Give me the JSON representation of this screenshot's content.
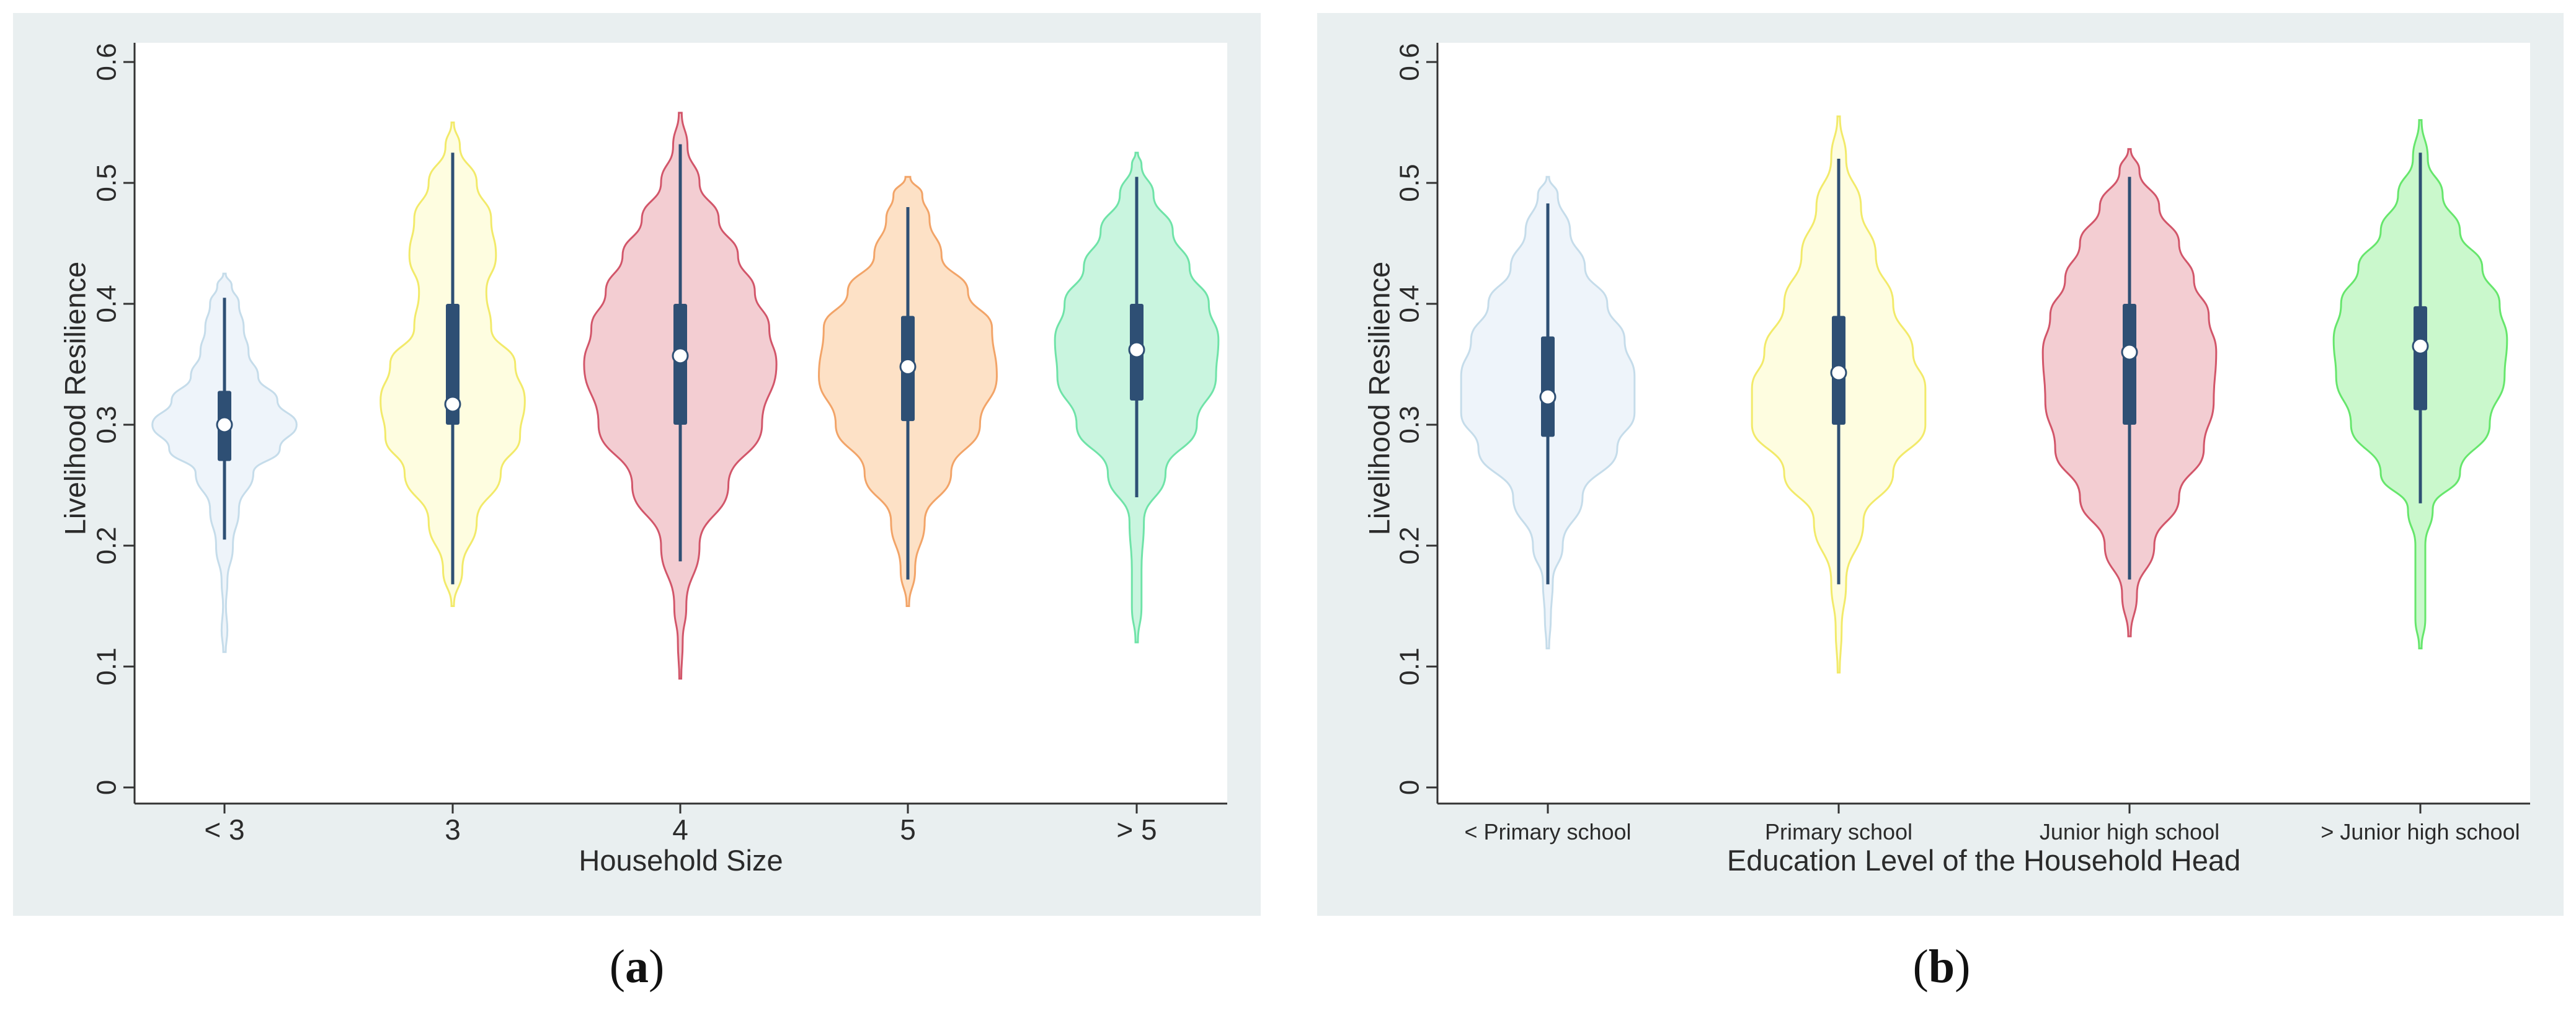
{
  "colors": {
    "panel_background": "#e9eff0",
    "plot_background": "#ffffff",
    "box": "#2e4f74",
    "median_marker": "#ffffff"
  },
  "captions": {
    "a": "a",
    "b": "b"
  },
  "chart_data": [
    {
      "id": "a",
      "type": "violin",
      "xlabel": "Household Size",
      "ylabel": "Livelihood Resilience",
      "ylim": [
        0,
        0.62
      ],
      "yticks": [
        "0",
        "0.1",
        "0.2",
        "0.3",
        "0.4",
        "0.5",
        "0.6"
      ],
      "categories": [
        "< 3",
        "3",
        "4",
        "5",
        "> 5"
      ],
      "series": [
        {
          "name": "< 3",
          "fill": "#eef4fa",
          "stroke": "#c5dcea",
          "whisker_low": 0.205,
          "q1": 0.27,
          "median": 0.3,
          "q3": 0.328,
          "whisker_high": 0.405,
          "density": [
            [
              0.112,
              0.005
            ],
            [
              0.13,
              0.012
            ],
            [
              0.15,
              0.006
            ],
            [
              0.17,
              0.012
            ],
            [
              0.2,
              0.035
            ],
            [
              0.23,
              0.06
            ],
            [
              0.26,
              0.12
            ],
            [
              0.28,
              0.23
            ],
            [
              0.3,
              0.3
            ],
            [
              0.32,
              0.22
            ],
            [
              0.34,
              0.14
            ],
            [
              0.36,
              0.1
            ],
            [
              0.38,
              0.08
            ],
            [
              0.4,
              0.06
            ],
            [
              0.415,
              0.03
            ],
            [
              0.425,
              0.005
            ]
          ]
        },
        {
          "name": "3",
          "fill": "#fefde0",
          "stroke": "#f2ea6a",
          "whisker_low": 0.168,
          "q1": 0.3,
          "median": 0.317,
          "q3": 0.4,
          "whisker_high": 0.525,
          "density": [
            [
              0.15,
              0.005
            ],
            [
              0.18,
              0.04
            ],
            [
              0.22,
              0.1
            ],
            [
              0.26,
              0.2
            ],
            [
              0.29,
              0.28
            ],
            [
              0.32,
              0.3
            ],
            [
              0.35,
              0.26
            ],
            [
              0.38,
              0.16
            ],
            [
              0.41,
              0.14
            ],
            [
              0.44,
              0.18
            ],
            [
              0.47,
              0.16
            ],
            [
              0.5,
              0.1
            ],
            [
              0.53,
              0.03
            ],
            [
              0.55,
              0.005
            ]
          ]
        },
        {
          "name": "4",
          "fill": "#f3cdd2",
          "stroke": "#d2566a",
          "whisker_low": 0.187,
          "q1": 0.3,
          "median": 0.357,
          "q3": 0.4,
          "whisker_high": 0.532,
          "density": [
            [
              0.09,
              0.004
            ],
            [
              0.12,
              0.01
            ],
            [
              0.15,
              0.025
            ],
            [
              0.2,
              0.08
            ],
            [
              0.25,
              0.2
            ],
            [
              0.3,
              0.34
            ],
            [
              0.35,
              0.4
            ],
            [
              0.38,
              0.37
            ],
            [
              0.41,
              0.31
            ],
            [
              0.44,
              0.24
            ],
            [
              0.47,
              0.16
            ],
            [
              0.5,
              0.08
            ],
            [
              0.53,
              0.03
            ],
            [
              0.558,
              0.006
            ]
          ]
        },
        {
          "name": "5",
          "fill": "#fde1c6",
          "stroke": "#f2a468",
          "whisker_low": 0.172,
          "q1": 0.303,
          "median": 0.348,
          "q3": 0.39,
          "whisker_high": 0.48,
          "density": [
            [
              0.15,
              0.005
            ],
            [
              0.18,
              0.03
            ],
            [
              0.22,
              0.07
            ],
            [
              0.26,
              0.18
            ],
            [
              0.3,
              0.3
            ],
            [
              0.34,
              0.37
            ],
            [
              0.38,
              0.35
            ],
            [
              0.41,
              0.25
            ],
            [
              0.44,
              0.14
            ],
            [
              0.47,
              0.09
            ],
            [
              0.49,
              0.06
            ],
            [
              0.505,
              0.01
            ]
          ]
        },
        {
          "name": "> 5",
          "fill": "#c9f5df",
          "stroke": "#6fe3a8",
          "whisker_low": 0.24,
          "q1": 0.32,
          "median": 0.362,
          "q3": 0.4,
          "whisker_high": 0.505,
          "density": [
            [
              0.12,
              0.005
            ],
            [
              0.15,
              0.02
            ],
            [
              0.18,
              0.02
            ],
            [
              0.22,
              0.03
            ],
            [
              0.26,
              0.12
            ],
            [
              0.3,
              0.25
            ],
            [
              0.34,
              0.33
            ],
            [
              0.37,
              0.34
            ],
            [
              0.4,
              0.3
            ],
            [
              0.43,
              0.22
            ],
            [
              0.46,
              0.15
            ],
            [
              0.49,
              0.07
            ],
            [
              0.515,
              0.02
            ],
            [
              0.525,
              0.005
            ]
          ]
        }
      ]
    },
    {
      "id": "b",
      "type": "violin",
      "xlabel": "Education Level of the Household Head",
      "ylabel": "Livelihood Resilience",
      "ylim": [
        0,
        0.62
      ],
      "yticks": [
        "0",
        "0.1",
        "0.2",
        "0.3",
        "0.4",
        "0.5",
        "0.6"
      ],
      "categories": [
        "< Primary school",
        "Primary school",
        "Junior high school",
        "> Junior high school"
      ],
      "series": [
        {
          "name": "< Primary school",
          "fill": "#eef4fa",
          "stroke": "#c5dcea",
          "whisker_low": 0.168,
          "q1": 0.29,
          "median": 0.323,
          "q3": 0.373,
          "whisker_high": 0.483,
          "density": [
            [
              0.115,
              0.005
            ],
            [
              0.14,
              0.012
            ],
            [
              0.17,
              0.02
            ],
            [
              0.2,
              0.06
            ],
            [
              0.24,
              0.14
            ],
            [
              0.28,
              0.28
            ],
            [
              0.31,
              0.35
            ],
            [
              0.34,
              0.35
            ],
            [
              0.37,
              0.31
            ],
            [
              0.4,
              0.24
            ],
            [
              0.43,
              0.15
            ],
            [
              0.46,
              0.09
            ],
            [
              0.49,
              0.04
            ],
            [
              0.505,
              0.005
            ]
          ]
        },
        {
          "name": "Primary school",
          "fill": "#fefde0",
          "stroke": "#f2ea6a",
          "whisker_low": 0.168,
          "q1": 0.3,
          "median": 0.343,
          "q3": 0.39,
          "whisker_high": 0.52,
          "density": [
            [
              0.095,
              0.004
            ],
            [
              0.13,
              0.012
            ],
            [
              0.17,
              0.03
            ],
            [
              0.22,
              0.1
            ],
            [
              0.26,
              0.22
            ],
            [
              0.3,
              0.35
            ],
            [
              0.33,
              0.35
            ],
            [
              0.36,
              0.3
            ],
            [
              0.4,
              0.22
            ],
            [
              0.44,
              0.15
            ],
            [
              0.48,
              0.09
            ],
            [
              0.52,
              0.03
            ],
            [
              0.555,
              0.005
            ]
          ]
        },
        {
          "name": "Junior high school",
          "fill": "#f3cdd2",
          "stroke": "#d2566a",
          "whisker_low": 0.172,
          "q1": 0.3,
          "median": 0.36,
          "q3": 0.4,
          "whisker_high": 0.505,
          "density": [
            [
              0.125,
              0.005
            ],
            [
              0.16,
              0.03
            ],
            [
              0.2,
              0.1
            ],
            [
              0.24,
              0.2
            ],
            [
              0.28,
              0.3
            ],
            [
              0.32,
              0.34
            ],
            [
              0.36,
              0.35
            ],
            [
              0.39,
              0.32
            ],
            [
              0.42,
              0.26
            ],
            [
              0.45,
              0.2
            ],
            [
              0.48,
              0.12
            ],
            [
              0.51,
              0.04
            ],
            [
              0.528,
              0.005
            ]
          ]
        },
        {
          "name": "> Junior high school",
          "fill": "#caf8cc",
          "stroke": "#66e66c",
          "whisker_low": 0.235,
          "q1": 0.312,
          "median": 0.365,
          "q3": 0.398,
          "whisker_high": 0.525,
          "density": [
            [
              0.115,
              0.005
            ],
            [
              0.14,
              0.02
            ],
            [
              0.17,
              0.02
            ],
            [
              0.2,
              0.02
            ],
            [
              0.23,
              0.05
            ],
            [
              0.26,
              0.16
            ],
            [
              0.3,
              0.28
            ],
            [
              0.34,
              0.34
            ],
            [
              0.37,
              0.35
            ],
            [
              0.4,
              0.32
            ],
            [
              0.43,
              0.25
            ],
            [
              0.46,
              0.16
            ],
            [
              0.49,
              0.09
            ],
            [
              0.52,
              0.03
            ],
            [
              0.552,
              0.005
            ]
          ]
        }
      ]
    }
  ]
}
